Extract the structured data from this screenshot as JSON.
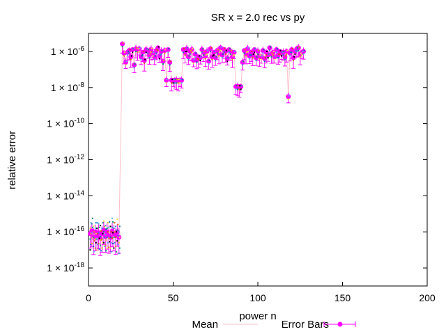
{
  "chart_data": {
    "type": "scatter",
    "title": "SR x = 2.0 rec vs py",
    "xlabel": "power n",
    "ylabel": "relative error",
    "xlim": [
      0,
      200
    ],
    "ylim_log10": [
      -19,
      -5
    ],
    "x_ticks": [
      "0",
      "50",
      "100",
      "150",
      "200"
    ],
    "y_ticks": [
      {
        "base": "1 × 10",
        "exp": "-6",
        "log10": -6
      },
      {
        "base": "1 × 10",
        "exp": "-8",
        "log10": -8
      },
      {
        "base": "1 × 10",
        "exp": "-10",
        "log10": -10
      },
      {
        "base": "1 × 10",
        "exp": "-12",
        "log10": -12
      },
      {
        "base": "1 × 10",
        "exp": "-14",
        "log10": -14
      },
      {
        "base": "1 × 10",
        "exp": "-16",
        "log10": -16
      },
      {
        "base": "1 × 10",
        "exp": "-18",
        "log10": -18
      }
    ],
    "legend": {
      "position": "bottom",
      "entries": [
        {
          "name": "Mean",
          "style": "line",
          "color": "#ffc0cb"
        },
        {
          "name": "Error Bars",
          "style": "errorbar-points",
          "color": "#ff00ff"
        }
      ]
    },
    "series": [
      {
        "name": "Error Bars",
        "color": "#ff00ff",
        "points_log10": [
          [
            1,
            -16.1
          ],
          [
            2,
            -15.95
          ],
          [
            3,
            -16.3
          ],
          [
            4,
            -16.0
          ],
          [
            5,
            -16.2
          ],
          [
            6,
            -16.05
          ],
          [
            7,
            -16.35
          ],
          [
            8,
            -16.1
          ],
          [
            9,
            -15.9
          ],
          [
            10,
            -16.25
          ],
          [
            11,
            -16.0
          ],
          [
            12,
            -16.15
          ],
          [
            13,
            -16.3
          ],
          [
            14,
            -15.95
          ],
          [
            15,
            -16.1
          ],
          [
            16,
            -16.2
          ],
          [
            17,
            -16.0
          ],
          [
            18,
            -16.3
          ],
          [
            20,
            -5.58
          ],
          [
            21,
            -6.1
          ],
          [
            22,
            -6.6
          ],
          [
            23,
            -6.05
          ],
          [
            24,
            -5.95
          ],
          [
            25,
            -6.3
          ],
          [
            26,
            -5.9
          ],
          [
            27,
            -6.75
          ],
          [
            28,
            -5.85
          ],
          [
            29,
            -5.9
          ],
          [
            30,
            -5.85
          ],
          [
            31,
            -6.3
          ],
          [
            32,
            -6.05
          ],
          [
            33,
            -6.5
          ],
          [
            34,
            -5.9
          ],
          [
            35,
            -5.95
          ],
          [
            36,
            -6.2
          ],
          [
            37,
            -5.88
          ],
          [
            38,
            -6.1
          ],
          [
            39,
            -6.3
          ],
          [
            40,
            -5.95
          ],
          [
            41,
            -5.8
          ],
          [
            42,
            -6.25
          ],
          [
            43,
            -6.0
          ],
          [
            44,
            -6.55
          ],
          [
            45,
            -5.95
          ],
          [
            46,
            -7.6
          ],
          [
            47,
            -5.9
          ],
          [
            48,
            -6.6
          ],
          [
            49,
            -7.6
          ],
          [
            50,
            -7.6
          ],
          [
            51,
            -7.6
          ],
          [
            52,
            -7.6
          ],
          [
            53,
            -7.6
          ],
          [
            54,
            -7.6
          ],
          [
            55,
            -7.6
          ],
          [
            56,
            -5.9
          ],
          [
            57,
            -6.05
          ],
          [
            58,
            -5.85
          ],
          [
            59,
            -6.3
          ],
          [
            60,
            -6.0
          ],
          [
            61,
            -5.9
          ],
          [
            62,
            -6.5
          ],
          [
            63,
            -6.15
          ],
          [
            64,
            -6.45
          ],
          [
            65,
            -6.3
          ],
          [
            66,
            -6.35
          ],
          [
            67,
            -5.9
          ],
          [
            68,
            -6.05
          ],
          [
            69,
            -6.25
          ],
          [
            70,
            -6.0
          ],
          [
            71,
            -6.55
          ],
          [
            72,
            -5.85
          ],
          [
            73,
            -6.3
          ],
          [
            74,
            -6.05
          ],
          [
            75,
            -6.35
          ],
          [
            76,
            -5.95
          ],
          [
            77,
            -6.1
          ],
          [
            78,
            -5.8
          ],
          [
            79,
            -6.2
          ],
          [
            80,
            -5.88
          ],
          [
            81,
            -6.0
          ],
          [
            82,
            -6.4
          ],
          [
            83,
            -5.9
          ],
          [
            84,
            -6.0
          ],
          [
            85,
            -6.3
          ],
          [
            86,
            -6.05
          ],
          [
            87,
            -7.95
          ],
          [
            88,
            -7.95
          ],
          [
            89,
            -7.95
          ],
          [
            90,
            -7.95
          ],
          [
            91,
            -6.6
          ],
          [
            92,
            -5.95
          ],
          [
            93,
            -6.1
          ],
          [
            94,
            -5.85
          ],
          [
            95,
            -6.25
          ],
          [
            96,
            -6.05
          ],
          [
            97,
            -6.2
          ],
          [
            98,
            -5.9
          ],
          [
            99,
            -6.35
          ],
          [
            100,
            -6.0
          ],
          [
            101,
            -6.25
          ],
          [
            102,
            -6.3
          ],
          [
            103,
            -5.95
          ],
          [
            104,
            -6.4
          ],
          [
            105,
            -6.05
          ],
          [
            106,
            -6.2
          ],
          [
            107,
            -5.8
          ],
          [
            108,
            -6.15
          ],
          [
            109,
            -6.05
          ],
          [
            110,
            -6.3
          ],
          [
            111,
            -5.9
          ],
          [
            112,
            -6.2
          ],
          [
            113,
            -6.0
          ],
          [
            114,
            -6.1
          ],
          [
            115,
            -6.05
          ],
          [
            116,
            -6.3
          ],
          [
            117,
            -6.0
          ],
          [
            118,
            -8.5
          ],
          [
            119,
            -6.1
          ],
          [
            120,
            -5.9
          ],
          [
            121,
            -6.35
          ],
          [
            122,
            -6.0
          ],
          [
            123,
            -5.85
          ],
          [
            124,
            -5.8
          ],
          [
            125,
            -6.15
          ],
          [
            126,
            -6.05
          ],
          [
            127,
            -6.0
          ]
        ]
      }
    ]
  }
}
